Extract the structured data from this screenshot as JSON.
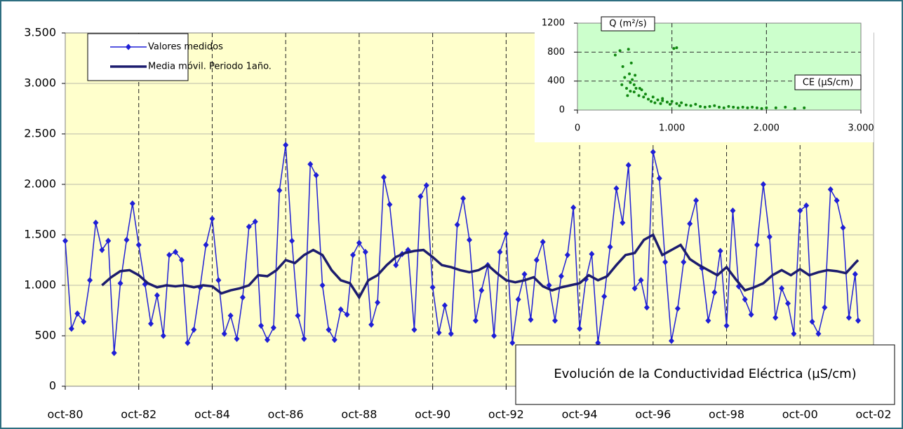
{
  "chart_data": [
    {
      "type": "line",
      "annotation": "Evolución de la Conductividad Eléctrica (µS/cm)",
      "xlim": [
        1980.75,
        2002.75
      ],
      "xticks": [
        {
          "value": 1980.75,
          "label": "oct-80"
        },
        {
          "value": 1982.75,
          "label": "oct-82"
        },
        {
          "value": 1984.75,
          "label": "oct-84"
        },
        {
          "value": 1986.75,
          "label": "oct-86"
        },
        {
          "value": 1988.75,
          "label": "oct-88"
        },
        {
          "value": 1990.75,
          "label": "oct-90"
        },
        {
          "value": 1992.75,
          "label": "oct-92"
        },
        {
          "value": 1994.75,
          "label": "oct-94"
        },
        {
          "value": 1996.75,
          "label": "oct-96"
        },
        {
          "value": 1998.75,
          "label": "oct-98"
        },
        {
          "value": 2000.75,
          "label": "oct-00"
        },
        {
          "value": 2002.75,
          "label": "oct-02"
        }
      ],
      "ylim": [
        0,
        3500
      ],
      "yticks": [
        0,
        500,
        {
          "value": 1000,
          "label": "1.000"
        },
        {
          "value": 1500,
          "label": "1.500"
        },
        {
          "value": 2000,
          "label": "2.000"
        },
        {
          "value": 2500,
          "label": "2.500"
        },
        {
          "value": 3000,
          "label": "3.000"
        },
        {
          "value": 3500,
          "label": "3.500"
        }
      ],
      "grid": true,
      "legend": "top-left",
      "series": [
        {
          "name": "Valores medidos",
          "color": "#1f1fd6",
          "marker": "diamond",
          "x": [
            1980.75,
            1980.92,
            1981.08,
            1981.25,
            1981.42,
            1981.58,
            1981.75,
            1981.92,
            1982.08,
            1982.25,
            1982.42,
            1982.58,
            1982.75,
            1982.92,
            1983.08,
            1983.25,
            1983.42,
            1983.58,
            1983.75,
            1983.92,
            1984.08,
            1984.25,
            1984.42,
            1984.58,
            1984.75,
            1984.92,
            1985.08,
            1985.25,
            1985.42,
            1985.58,
            1985.75,
            1985.92,
            1986.08,
            1986.25,
            1986.42,
            1986.58,
            1986.75,
            1986.92,
            1987.08,
            1987.25,
            1987.42,
            1987.58,
            1987.75,
            1987.92,
            1988.08,
            1988.25,
            1988.42,
            1988.58,
            1988.75,
            1988.92,
            1989.08,
            1989.25,
            1989.42,
            1989.58,
            1989.75,
            1989.92,
            1990.08,
            1990.25,
            1990.42,
            1990.58,
            1990.75,
            1990.92,
            1991.08,
            1991.25,
            1991.42,
            1991.58,
            1991.75,
            1991.92,
            1992.08,
            1992.25,
            1992.42,
            1992.58,
            1992.75,
            1992.92,
            1993.08,
            1993.25,
            1993.42,
            1993.58,
            1993.75,
            1993.92,
            1994.08,
            1994.25,
            1994.42,
            1994.58,
            1994.75,
            1994.92,
            1995.08,
            1995.25,
            1995.42,
            1995.58,
            1995.75,
            1995.92,
            1996.08,
            1996.25,
            1996.42,
            1996.58,
            1996.75,
            1996.92,
            1997.08,
            1997.25,
            1997.42,
            1997.58,
            1997.75,
            1997.92,
            1998.08,
            1998.25,
            1998.42,
            1998.58,
            1998.75,
            1998.92,
            1999.08,
            1999.25,
            1999.42,
            1999.58,
            1999.75,
            1999.92,
            2000.08,
            2000.25,
            2000.42,
            2000.58,
            2000.75,
            2000.92,
            2001.08,
            2001.25,
            2001.42,
            2001.58,
            2001.75,
            2001.92,
            2002.08,
            2002.25,
            2002.33
          ],
          "values": [
            1440,
            570,
            720,
            640,
            1050,
            1620,
            1350,
            1440,
            330,
            1020,
            1450,
            1810,
            1400,
            1010,
            620,
            900,
            500,
            1300,
            1330,
            1250,
            430,
            560,
            980,
            1400,
            1660,
            1050,
            520,
            700,
            470,
            880,
            1580,
            1630,
            600,
            460,
            580,
            1940,
            2390,
            1440,
            700,
            470,
            2200,
            2090,
            1000,
            560,
            460,
            760,
            710,
            1300,
            1420,
            1330,
            610,
            830,
            2070,
            1800,
            1200,
            1310,
            1350,
            560,
            1880,
            1990,
            980,
            530,
            800,
            520,
            1600,
            1860,
            1450,
            650,
            950,
            1200,
            500,
            1330,
            1510,
            430,
            860,
            1110,
            660,
            1250,
            1430,
            1000,
            650,
            1090,
            1300,
            1770,
            570,
            1060,
            1310,
            430,
            890,
            1380,
            1960,
            1620,
            2190,
            970,
            1050,
            780,
            2320,
            2060,
            1230,
            450,
            770,
            1230,
            1610,
            1840,
            1170,
            650,
            930,
            1340,
            600,
            1740,
            990,
            860,
            710,
            1400,
            2000,
            1480,
            680,
            970,
            820,
            520,
            1740,
            1790,
            640,
            520,
            780,
            1950,
            1840,
            1570,
            680,
            1110,
            650
          ]
        },
        {
          "name": "Media móvil. Periodo 1año.",
          "color": "#1c1c6e",
          "x": [
            1981.75,
            1982,
            1982.25,
            1982.5,
            1982.75,
            1983,
            1983.25,
            1983.5,
            1983.75,
            1984,
            1984.25,
            1984.5,
            1984.75,
            1985,
            1985.25,
            1985.5,
            1985.75,
            1986,
            1986.25,
            1986.5,
            1986.75,
            1987,
            1987.25,
            1987.5,
            1987.75,
            1988,
            1988.25,
            1988.5,
            1988.75,
            1989,
            1989.25,
            1989.5,
            1989.75,
            1990,
            1990.25,
            1990.5,
            1990.75,
            1991,
            1991.25,
            1991.5,
            1991.75,
            1992,
            1992.25,
            1992.5,
            1992.75,
            1993,
            1993.25,
            1993.5,
            1993.75,
            1994,
            1994.25,
            1994.5,
            1994.75,
            1995,
            1995.25,
            1995.5,
            1995.75,
            1996,
            1996.25,
            1996.5,
            1996.75,
            1997,
            1997.25,
            1997.5,
            1997.75,
            1998,
            1998.25,
            1998.5,
            1998.75,
            1999,
            1999.25,
            1999.5,
            1999.75,
            2000,
            2000.25,
            2000.5,
            2000.75,
            2001,
            2001.25,
            2001.5,
            2001.75,
            2002,
            2002.25,
            2002.33
          ],
          "values": [
            1000,
            1080,
            1140,
            1150,
            1100,
            1020,
            980,
            1000,
            990,
            1000,
            980,
            1000,
            990,
            920,
            950,
            970,
            1000,
            1100,
            1090,
            1150,
            1250,
            1220,
            1300,
            1350,
            1300,
            1150,
            1050,
            1020,
            880,
            1050,
            1100,
            1200,
            1280,
            1320,
            1340,
            1350,
            1280,
            1200,
            1180,
            1150,
            1130,
            1150,
            1200,
            1120,
            1050,
            1030,
            1050,
            1080,
            990,
            950,
            980,
            1000,
            1020,
            1100,
            1050,
            1090,
            1200,
            1300,
            1320,
            1450,
            1500,
            1300,
            1350,
            1400,
            1260,
            1200,
            1150,
            1100,
            1180,
            1060,
            950,
            980,
            1020,
            1100,
            1150,
            1100,
            1160,
            1100,
            1130,
            1150,
            1140,
            1120,
            1220,
            1250
          ]
        }
      ]
    },
    {
      "type": "scatter",
      "xlabel": "CE (µS/cm)",
      "ylabel": "Q (m²/s)",
      "xlim": [
        0,
        3000
      ],
      "xticks": [
        0,
        {
          "value": 1000,
          "label": "1.000"
        },
        {
          "value": 2000,
          "label": "2.000"
        },
        {
          "value": 3000,
          "label": "3.000"
        }
      ],
      "ylim": [
        0,
        1200
      ],
      "yticks": [
        0,
        400,
        800,
        1200
      ],
      "grid": true,
      "color": "#118811",
      "x": [
        400,
        450,
        480,
        500,
        520,
        540,
        550,
        560,
        580,
        600,
        600,
        620,
        650,
        680,
        700,
        720,
        750,
        780,
        800,
        820,
        850,
        880,
        900,
        950,
        980,
        1000,
        1020,
        1050,
        1080,
        1100,
        1150,
        1200,
        1250,
        1300,
        1350,
        1400,
        1450,
        1500,
        1550,
        1600,
        1650,
        1700,
        1750,
        1800,
        1850,
        1900,
        1950,
        2000,
        2100,
        2200,
        2300,
        2400,
        470,
        530,
        570,
        610,
        660,
        1050,
        560,
        900
      ],
      "values": [
        760,
        820,
        600,
        450,
        300,
        840,
        500,
        380,
        420,
        250,
        350,
        300,
        200,
        280,
        180,
        220,
        150,
        120,
        180,
        100,
        140,
        90,
        160,
        110,
        80,
        120,
        850,
        90,
        60,
        100,
        70,
        60,
        80,
        50,
        40,
        50,
        60,
        40,
        30,
        50,
        40,
        30,
        40,
        30,
        40,
        30,
        20,
        30,
        30,
        40,
        20,
        30,
        350,
        200,
        650,
        480,
        300,
        860,
        260,
        130
      ]
    }
  ]
}
